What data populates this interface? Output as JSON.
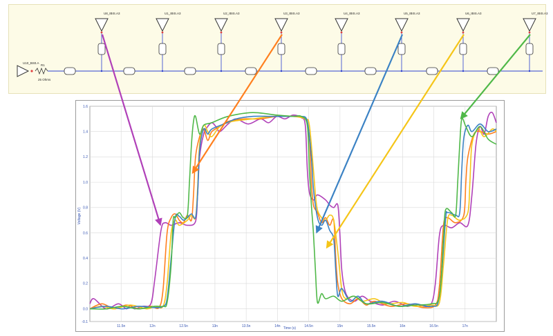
{
  "schematic": {
    "driver_label": "U10_BS0.A",
    "resistor_label": "R1",
    "resistor_value": "25 Ohms",
    "receivers": [
      {
        "label": "U8_IBIS.A3",
        "color": "#b040b8"
      },
      {
        "label": "U1_IBIS.A3",
        "color": "#4a4a4a"
      },
      {
        "label": "U2_IBIS.A3",
        "color": "#4a4a4a"
      },
      {
        "label": "U3_IBIS.A3",
        "color": "#ff7f1e"
      },
      {
        "label": "U4_IBIS.A3",
        "color": "#4a4a4a"
      },
      {
        "label": "U5_IBIS.A3",
        "color": "#3b82c4"
      },
      {
        "label": "U6_IBIS.A3",
        "color": "#f5c518"
      },
      {
        "label": "U7_IBIS.A3",
        "color": "#4fb848"
      }
    ]
  },
  "colors": {
    "magenta": "#b040b8",
    "orange": "#ff7f1e",
    "blue": "#3b82c4",
    "yellow": "#f5c518",
    "green": "#4fb848",
    "schematic_bg": "#fdfbe7",
    "wire": "#2a3fd0"
  },
  "chart_data": {
    "type": "line",
    "title": "",
    "xlabel": "Time (s)",
    "ylabel": "Voltage (V)",
    "ylim": [
      -0.1,
      1.6
    ],
    "xlim": [
      0,
      1
    ],
    "y_ticks": [
      "-0.1",
      "0.0",
      "0.2",
      "0.4",
      "0.6",
      "0.8",
      "1.0",
      "1.2",
      "1.4",
      "1.6"
    ],
    "x_ticks": [
      "11.5n",
      "12n",
      "12.5n",
      "13n",
      "13.5n",
      "14n",
      "14.5n",
      "15n",
      "15.5n",
      "16n",
      "16.5n",
      "17n"
    ],
    "grid": true,
    "series": [
      {
        "color": "#b040b8",
        "points": [
          [
            0.0,
            0.04
          ],
          [
            0.01,
            0.08
          ],
          [
            0.04,
            0.0
          ],
          [
            0.07,
            0.04
          ],
          [
            0.09,
            0.0
          ],
          [
            0.1,
            0.03
          ],
          [
            0.11,
            0.0
          ],
          [
            0.13,
            0.02
          ],
          [
            0.15,
            0.04
          ],
          [
            0.16,
            0.24
          ],
          [
            0.175,
            0.62
          ],
          [
            0.185,
            0.68
          ],
          [
            0.2,
            0.66
          ],
          [
            0.22,
            0.68
          ],
          [
            0.24,
            0.66
          ],
          [
            0.26,
            0.69
          ],
          [
            0.265,
            0.9
          ],
          [
            0.27,
            1.2
          ],
          [
            0.28,
            1.38
          ],
          [
            0.29,
            1.44
          ],
          [
            0.3,
            1.47
          ],
          [
            0.31,
            1.44
          ],
          [
            0.32,
            1.4
          ],
          [
            0.34,
            1.46
          ],
          [
            0.36,
            1.5
          ],
          [
            0.39,
            1.46
          ],
          [
            0.42,
            1.5
          ],
          [
            0.44,
            1.47
          ],
          [
            0.46,
            1.52
          ],
          [
            0.48,
            1.5
          ],
          [
            0.5,
            1.53
          ],
          [
            0.52,
            1.51
          ],
          [
            0.53,
            1.45
          ],
          [
            0.535,
            1.1
          ],
          [
            0.54,
            0.92
          ],
          [
            0.55,
            0.86
          ],
          [
            0.56,
            0.9
          ],
          [
            0.58,
            0.86
          ],
          [
            0.59,
            0.82
          ],
          [
            0.6,
            0.8
          ],
          [
            0.61,
            0.82
          ],
          [
            0.615,
            0.6
          ],
          [
            0.62,
            0.3
          ],
          [
            0.63,
            0.12
          ],
          [
            0.65,
            0.06
          ],
          [
            0.67,
            0.1
          ],
          [
            0.69,
            0.06
          ],
          [
            0.72,
            0.03
          ],
          [
            0.75,
            0.06
          ],
          [
            0.78,
            0.02
          ],
          [
            0.8,
            0.04
          ],
          [
            0.82,
            0.02
          ],
          [
            0.84,
            0.04
          ],
          [
            0.85,
            0.2
          ],
          [
            0.86,
            0.58
          ],
          [
            0.87,
            0.66
          ],
          [
            0.89,
            0.64
          ],
          [
            0.91,
            0.68
          ],
          [
            0.93,
            0.66
          ],
          [
            0.94,
            0.9
          ],
          [
            0.95,
            1.3
          ],
          [
            0.96,
            1.44
          ],
          [
            0.97,
            1.38
          ],
          [
            0.98,
            1.52
          ],
          [
            0.99,
            1.55
          ],
          [
            1.0,
            1.47
          ]
        ]
      },
      {
        "color": "#ff7f1e",
        "points": [
          [
            0.0,
            0.0
          ],
          [
            0.03,
            0.04
          ],
          [
            0.06,
            0.0
          ],
          [
            0.09,
            0.03
          ],
          [
            0.12,
            0.0
          ],
          [
            0.15,
            0.02
          ],
          [
            0.17,
            0.01
          ],
          [
            0.18,
            0.15
          ],
          [
            0.19,
            0.6
          ],
          [
            0.2,
            0.72
          ],
          [
            0.21,
            0.75
          ],
          [
            0.22,
            0.7
          ],
          [
            0.23,
            0.68
          ],
          [
            0.24,
            0.74
          ],
          [
            0.25,
            0.7
          ],
          [
            0.255,
            0.9
          ],
          [
            0.26,
            1.2
          ],
          [
            0.27,
            1.36
          ],
          [
            0.28,
            1.42
          ],
          [
            0.29,
            1.33
          ],
          [
            0.3,
            1.4
          ],
          [
            0.32,
            1.44
          ],
          [
            0.34,
            1.48
          ],
          [
            0.38,
            1.5
          ],
          [
            0.42,
            1.5
          ],
          [
            0.46,
            1.52
          ],
          [
            0.5,
            1.52
          ],
          [
            0.53,
            1.5
          ],
          [
            0.54,
            1.35
          ],
          [
            0.545,
            1.0
          ],
          [
            0.55,
            0.82
          ],
          [
            0.56,
            0.76
          ],
          [
            0.57,
            0.68
          ],
          [
            0.58,
            0.72
          ],
          [
            0.59,
            0.66
          ],
          [
            0.6,
            0.7
          ],
          [
            0.605,
            0.4
          ],
          [
            0.61,
            0.2
          ],
          [
            0.62,
            0.08
          ],
          [
            0.64,
            0.04
          ],
          [
            0.66,
            0.08
          ],
          [
            0.68,
            0.03
          ],
          [
            0.7,
            0.06
          ],
          [
            0.74,
            0.02
          ],
          [
            0.78,
            0.04
          ],
          [
            0.82,
            0.01
          ],
          [
            0.85,
            0.03
          ],
          [
            0.86,
            0.18
          ],
          [
            0.87,
            0.66
          ],
          [
            0.88,
            0.72
          ],
          [
            0.9,
            0.68
          ],
          [
            0.92,
            0.74
          ],
          [
            0.925,
            1.0
          ],
          [
            0.93,
            1.2
          ],
          [
            0.945,
            1.38
          ],
          [
            0.96,
            1.4
          ],
          [
            0.98,
            1.38
          ],
          [
            1.0,
            1.4
          ]
        ]
      },
      {
        "color": "#f5c518",
        "points": [
          [
            0.0,
            0.0
          ],
          [
            0.03,
            0.02
          ],
          [
            0.06,
            0.0
          ],
          [
            0.1,
            0.03
          ],
          [
            0.14,
            0.0
          ],
          [
            0.16,
            0.02
          ],
          [
            0.18,
            0.02
          ],
          [
            0.19,
            0.2
          ],
          [
            0.2,
            0.6
          ],
          [
            0.21,
            0.7
          ],
          [
            0.22,
            0.66
          ],
          [
            0.24,
            0.7
          ],
          [
            0.25,
            0.74
          ],
          [
            0.26,
            0.72
          ],
          [
            0.265,
            0.95
          ],
          [
            0.27,
            1.3
          ],
          [
            0.28,
            1.45
          ],
          [
            0.29,
            1.4
          ],
          [
            0.3,
            1.36
          ],
          [
            0.32,
            1.44
          ],
          [
            0.35,
            1.48
          ],
          [
            0.4,
            1.5
          ],
          [
            0.45,
            1.52
          ],
          [
            0.5,
            1.52
          ],
          [
            0.53,
            1.5
          ],
          [
            0.54,
            1.45
          ],
          [
            0.55,
            1.1
          ],
          [
            0.555,
            0.9
          ],
          [
            0.56,
            0.78
          ],
          [
            0.57,
            0.72
          ],
          [
            0.58,
            0.7
          ],
          [
            0.59,
            0.74
          ],
          [
            0.6,
            0.7
          ],
          [
            0.61,
            0.45
          ],
          [
            0.62,
            0.15
          ],
          [
            0.63,
            0.08
          ],
          [
            0.65,
            0.1
          ],
          [
            0.67,
            0.06
          ],
          [
            0.7,
            0.08
          ],
          [
            0.73,
            0.04
          ],
          [
            0.77,
            0.05
          ],
          [
            0.8,
            0.02
          ],
          [
            0.84,
            0.03
          ],
          [
            0.86,
            0.05
          ],
          [
            0.87,
            0.35
          ],
          [
            0.88,
            0.7
          ],
          [
            0.89,
            0.74
          ],
          [
            0.91,
            0.7
          ],
          [
            0.93,
            0.76
          ],
          [
            0.935,
            1.0
          ],
          [
            0.94,
            1.3
          ],
          [
            0.955,
            1.42
          ],
          [
            0.97,
            1.36
          ],
          [
            0.99,
            1.42
          ],
          [
            1.0,
            1.4
          ]
        ]
      },
      {
        "color": "#3b82c4",
        "points": [
          [
            0.0,
            0.0
          ],
          [
            0.04,
            0.02
          ],
          [
            0.08,
            0.0
          ],
          [
            0.12,
            0.02
          ],
          [
            0.16,
            0.01
          ],
          [
            0.18,
            0.02
          ],
          [
            0.19,
            0.08
          ],
          [
            0.2,
            0.4
          ],
          [
            0.21,
            0.72
          ],
          [
            0.22,
            0.73
          ],
          [
            0.23,
            0.7
          ],
          [
            0.24,
            0.72
          ],
          [
            0.25,
            0.75
          ],
          [
            0.26,
            0.72
          ],
          [
            0.265,
            0.9
          ],
          [
            0.27,
            1.25
          ],
          [
            0.28,
            1.42
          ],
          [
            0.29,
            1.38
          ],
          [
            0.3,
            1.42
          ],
          [
            0.33,
            1.46
          ],
          [
            0.36,
            1.5
          ],
          [
            0.4,
            1.52
          ],
          [
            0.45,
            1.52
          ],
          [
            0.5,
            1.52
          ],
          [
            0.52,
            1.52
          ],
          [
            0.535,
            1.48
          ],
          [
            0.545,
            1.2
          ],
          [
            0.55,
            0.95
          ],
          [
            0.56,
            0.72
          ],
          [
            0.57,
            0.66
          ],
          [
            0.58,
            0.7
          ],
          [
            0.59,
            0.62
          ],
          [
            0.6,
            0.55
          ],
          [
            0.605,
            0.3
          ],
          [
            0.61,
            0.1
          ],
          [
            0.62,
            0.16
          ],
          [
            0.64,
            0.06
          ],
          [
            0.66,
            0.1
          ],
          [
            0.68,
            0.04
          ],
          [
            0.72,
            0.06
          ],
          [
            0.76,
            0.02
          ],
          [
            0.8,
            0.04
          ],
          [
            0.84,
            0.02
          ],
          [
            0.86,
            0.1
          ],
          [
            0.875,
            0.7
          ],
          [
            0.88,
            0.76
          ],
          [
            0.9,
            0.74
          ],
          [
            0.91,
            0.76
          ],
          [
            0.915,
            1.1
          ],
          [
            0.92,
            1.35
          ],
          [
            0.93,
            1.45
          ],
          [
            0.94,
            1.4
          ],
          [
            0.96,
            1.46
          ],
          [
            0.98,
            1.4
          ],
          [
            1.0,
            1.42
          ]
        ]
      },
      {
        "color": "#4fb848",
        "points": [
          [
            0.0,
            0.0
          ],
          [
            0.04,
            0.0
          ],
          [
            0.08,
            0.02
          ],
          [
            0.12,
            0.0
          ],
          [
            0.16,
            0.02
          ],
          [
            0.18,
            0.02
          ],
          [
            0.19,
            0.05
          ],
          [
            0.2,
            0.35
          ],
          [
            0.205,
            0.7
          ],
          [
            0.21,
            0.72
          ],
          [
            0.22,
            0.76
          ],
          [
            0.23,
            0.72
          ],
          [
            0.24,
            0.74
          ],
          [
            0.245,
            1.0
          ],
          [
            0.25,
            1.3
          ],
          [
            0.255,
            1.48
          ],
          [
            0.26,
            1.52
          ],
          [
            0.27,
            1.38
          ],
          [
            0.28,
            1.45
          ],
          [
            0.3,
            1.47
          ],
          [
            0.34,
            1.52
          ],
          [
            0.4,
            1.55
          ],
          [
            0.46,
            1.53
          ],
          [
            0.5,
            1.52
          ],
          [
            0.52,
            1.52
          ],
          [
            0.535,
            1.45
          ],
          [
            0.54,
            1.1
          ],
          [
            0.545,
            0.82
          ],
          [
            0.55,
            0.6
          ],
          [
            0.555,
            0.3
          ],
          [
            0.56,
            0.05
          ],
          [
            0.57,
            0.12
          ],
          [
            0.58,
            0.08
          ],
          [
            0.6,
            0.1
          ],
          [
            0.62,
            0.06
          ],
          [
            0.65,
            0.1
          ],
          [
            0.68,
            0.04
          ],
          [
            0.72,
            0.05
          ],
          [
            0.76,
            0.02
          ],
          [
            0.8,
            0.03
          ],
          [
            0.84,
            0.04
          ],
          [
            0.86,
            0.1
          ],
          [
            0.87,
            0.55
          ],
          [
            0.875,
            0.78
          ],
          [
            0.89,
            0.76
          ],
          [
            0.9,
            0.74
          ],
          [
            0.905,
            1.0
          ],
          [
            0.91,
            1.3
          ],
          [
            0.915,
            1.5
          ],
          [
            0.925,
            1.44
          ],
          [
            0.94,
            1.36
          ],
          [
            0.96,
            1.44
          ],
          [
            0.98,
            1.34
          ],
          [
            1.0,
            1.3
          ]
        ]
      }
    ],
    "annotations": [
      {
        "from_receiver": 0,
        "to": [
          0.175,
          0.66
        ],
        "color": "#b040b8"
      },
      {
        "from_receiver": 3,
        "to": [
          0.255,
          1.07
        ],
        "color": "#ff7f1e"
      },
      {
        "from_receiver": 5,
        "to": [
          0.56,
          0.6
        ],
        "color": "#3b82c4"
      },
      {
        "from_receiver": 6,
        "to": [
          0.585,
          0.48
        ],
        "color": "#f5c518"
      },
      {
        "from_receiver": 7,
        "to": [
          0.915,
          1.5
        ],
        "color": "#4fb848"
      }
    ]
  }
}
